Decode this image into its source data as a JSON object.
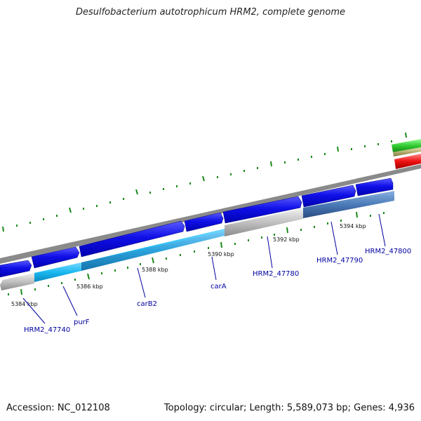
{
  "title": "Desulfobacterium autotrophicum HRM2, complete genome",
  "footer": {
    "accession": "Accession: NC_012108",
    "summary": "Topology: circular; Length: 5,589,073 bp; Genes: 4,936"
  },
  "colors": {
    "forward_cds": "#0a0ae0",
    "reverse_cds_light": "#1ab8f0",
    "reverse_cds_steel": "#4a7ab8",
    "reverse_gray": "#c0c0c0",
    "backbone": "#8a8a8a",
    "tick": "#1a8a1a",
    "gene_label": "#0000a0",
    "ring_green": "#33cc33",
    "ring_olive": "#b8b070",
    "ring_red": "#ee1111"
  },
  "kbp_labels": [
    "5384 kbp",
    "5386 kbp",
    "5388 kbp",
    "5390 kbp",
    "5392 kbp",
    "5394 kbp"
  ],
  "gene_labels": [
    "HRM2_47740",
    "purF",
    "carB2",
    "carA",
    "HRM2_47780",
    "HRM2_47790",
    "HRM2_47800"
  ]
}
